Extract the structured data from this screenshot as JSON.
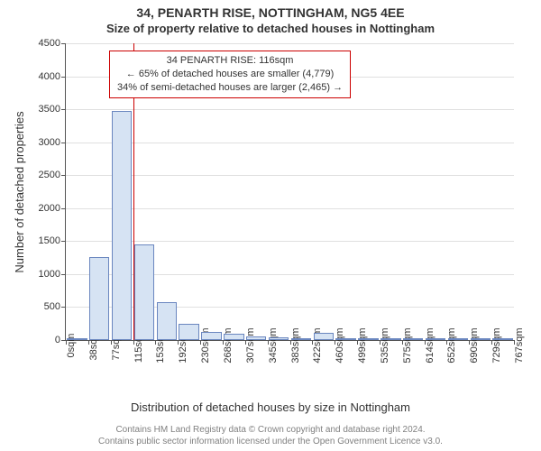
{
  "title_line1": "34, PENARTH RISE, NOTTINGHAM, NG5 4EE",
  "title_line2": "Size of property relative to detached houses in Nottingham",
  "x_axis_label": "Distribution of detached houses by size in Nottingham",
  "y_axis_label": "Number of detached properties",
  "y_axis": {
    "min": 0,
    "max": 4500,
    "ticks": [
      0,
      500,
      1000,
      1500,
      2000,
      2500,
      3000,
      3500,
      4000,
      4500
    ]
  },
  "x_axis": {
    "tick_labels": [
      "0sqm",
      "38sqm",
      "77sqm",
      "115sqm",
      "153sqm",
      "192sqm",
      "230sqm",
      "268sqm",
      "307sqm",
      "345sqm",
      "383sqm",
      "422sqm",
      "460sqm",
      "499sqm",
      "535sqm",
      "575sqm",
      "614sqm",
      "652sqm",
      "690sqm",
      "729sqm",
      "767sqm"
    ]
  },
  "bars": {
    "values": [
      0,
      1260,
      3470,
      1450,
      570,
      250,
      130,
      90,
      55,
      35,
      25,
      110,
      15,
      10,
      10,
      7,
      5,
      10,
      5,
      5
    ],
    "fill_color": "#d6e3f3",
    "border_color": "#6a86bf",
    "bar_width_frac": 0.9
  },
  "marker": {
    "sqm": 116,
    "color": "#cc0000",
    "box_bg": "#ffffff",
    "box_lines": [
      "34 PENARTH RISE: 116sqm",
      "← 65% of detached houses are smaller (4,779)",
      "34% of semi-detached houses are larger (2,465) →"
    ]
  },
  "grid_color": "#e0e0e0",
  "axis_color": "#555555",
  "background_color": "#ffffff",
  "tick_font_size": 11,
  "label_font_size": 13,
  "title_font_size": 14,
  "footer_lines": [
    "Contains HM Land Registry data © Crown copyright and database right 2024.",
    "Contains public sector information licensed under the Open Government Licence v3.0."
  ],
  "footer_color": "#808080"
}
